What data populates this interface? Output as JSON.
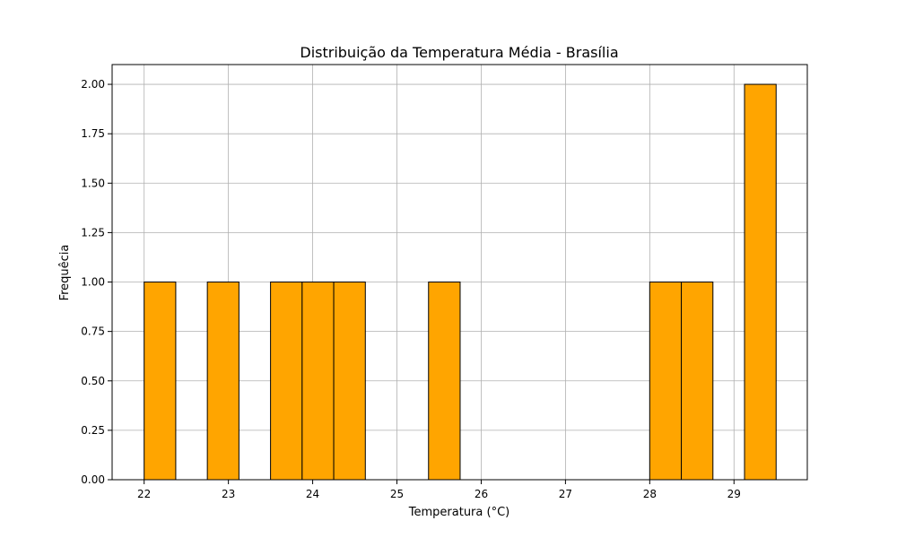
{
  "chart_data": {
    "type": "bar",
    "subtype": "histogram",
    "title": "Distribuição da Temperatura Média - Brasília",
    "xlabel": "Temperatura (°C)",
    "ylabel": "Frequêcia",
    "xlim": [
      21.62,
      29.87
    ],
    "ylim": [
      0,
      2.1
    ],
    "x_ticks": [
      22,
      23,
      24,
      25,
      26,
      27,
      28,
      29
    ],
    "y_ticks": [
      0.0,
      0.25,
      0.5,
      0.75,
      1.0,
      1.25,
      1.5,
      1.75,
      2.0
    ],
    "y_tick_labels": [
      "0.00",
      "0.25",
      "0.50",
      "0.75",
      "1.00",
      "1.25",
      "1.50",
      "1.75",
      "2.00"
    ],
    "bins": [
      {
        "start": 22.0,
        "end": 22.375,
        "count": 1
      },
      {
        "start": 22.75,
        "end": 23.125,
        "count": 1
      },
      {
        "start": 23.5,
        "end": 23.875,
        "count": 1
      },
      {
        "start": 23.875,
        "end": 24.25,
        "count": 1
      },
      {
        "start": 24.25,
        "end": 24.625,
        "count": 1
      },
      {
        "start": 25.375,
        "end": 25.75,
        "count": 1
      },
      {
        "start": 28.0,
        "end": 28.375,
        "count": 1
      },
      {
        "start": 28.375,
        "end": 28.75,
        "count": 1
      },
      {
        "start": 29.125,
        "end": 29.5,
        "count": 2
      }
    ],
    "grid": true,
    "colors": {
      "bar_fill": "#FFA500",
      "bar_edge": "#000000",
      "grid": "#b0b0b0",
      "axes": "#000000"
    }
  }
}
